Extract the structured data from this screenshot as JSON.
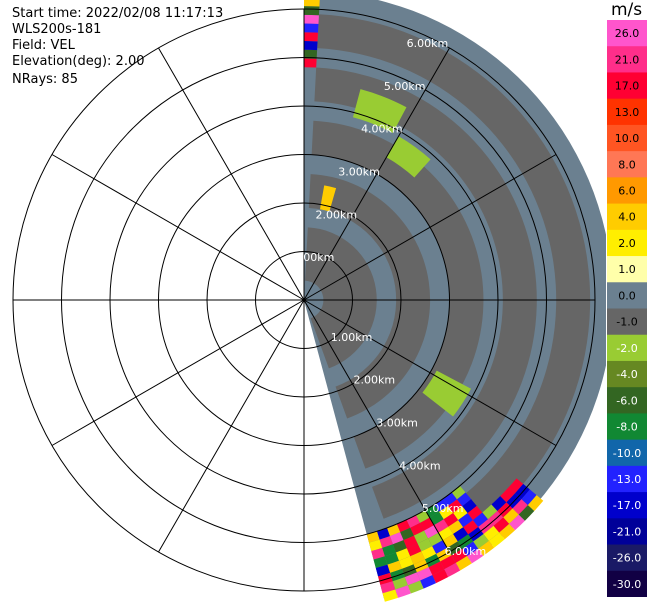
{
  "info": {
    "start_time": "Start time: 2022/02/08 11:17:13",
    "instrument": "WLS200s-181",
    "field": "Field: VEL",
    "elevation": "Elevation(deg): 2.00",
    "nrays": "NRays: 85"
  },
  "range_rings": {
    "upper_labels": [
      "1.00km",
      "2.00km",
      "3.00km",
      "4.00km",
      "5.00km",
      "6.00km"
    ],
    "lower_labels": [
      "1.00km",
      "2.00km",
      "3.00km",
      "4.00km",
      "5.00km",
      "6.00km"
    ]
  },
  "colorbar": {
    "units": "m/s",
    "ticks": [
      "26.0",
      "21.0",
      "17.0",
      "13.0",
      "10.0",
      "8.0",
      "6.0",
      "4.0",
      "2.0",
      "1.0",
      "0.0",
      "-1.0",
      "-2.0",
      "-4.0",
      "-6.0",
      "-8.0",
      "-10.0",
      "-13.0",
      "-17.0",
      "-21.0",
      "-26.0",
      "-30.0"
    ],
    "colors": [
      "#ff55cc",
      "#ff2e8a",
      "#ff0033",
      "#ff3300",
      "#ff5522",
      "#ff7755",
      "#ff9900",
      "#ffcc00",
      "#ffee00",
      "#ffffaa",
      "#6b8090",
      "#666666",
      "#99cc33",
      "#668822",
      "#336622",
      "#118833",
      "#1166aa",
      "#2222ff",
      "#0000cc",
      "#000099",
      "#1a1a66",
      "#110044"
    ]
  }
}
